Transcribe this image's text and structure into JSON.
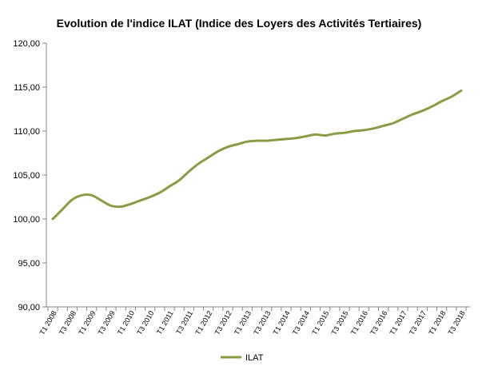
{
  "chart_data": {
    "type": "line",
    "title": "Evolution de l'indice ILAT (Indice des Loyers des Activités Tertiaires)",
    "xlabel": "",
    "ylabel": "",
    "ylim": [
      90,
      120
    ],
    "yticks": [
      "90,00",
      "95,00",
      "100,00",
      "105,00",
      "110,00",
      "115,00",
      "120,00"
    ],
    "ytick_values": [
      90,
      95,
      100,
      105,
      110,
      115,
      120
    ],
    "categories": [
      "T1 2008",
      "T2 2008",
      "T3 2008",
      "T4 2008",
      "T1 2009",
      "T2 2009",
      "T3 2009",
      "T4 2009",
      "T1 2010",
      "T2 2010",
      "T3 2010",
      "T4 2010",
      "T1 2011",
      "T2 2011",
      "T3 2011",
      "T4 2011",
      "T1 2012",
      "T2 2012",
      "T3 2012",
      "T4 2012",
      "T1 2013",
      "T2 2013",
      "T3 2013",
      "T4 2013",
      "T1 2014",
      "T2 2014",
      "T3 2014",
      "T4 2014",
      "T1 2015",
      "T2 2015",
      "T3 2015",
      "T4 2015",
      "T1 2016",
      "T2 2016",
      "T3 2016",
      "T4 2016",
      "T1 2017",
      "T2 2017",
      "T3 2017",
      "T4 2017",
      "T1 2018",
      "T2 2018",
      "T3 2018"
    ],
    "tick_labels": [
      "T1 2008",
      "T3 2008",
      "T1 2009",
      "T3 2009",
      "T1 2010",
      "T3 2010",
      "T1 2011",
      "T3 2011",
      "T1 2012",
      "T3 2012",
      "T1 2013",
      "T3 2013",
      "T1 2014",
      "T3 2014",
      "T1 2015",
      "T3 2015",
      "T1 2016",
      "T3 2016",
      "T1 2017",
      "T3 2017",
      "T1 2018",
      "T3 2018"
    ],
    "series": [
      {
        "name": "ILAT",
        "color": "#8a9b45",
        "values": [
          100.0,
          101.1,
          102.2,
          102.7,
          102.7,
          102.1,
          101.5,
          101.4,
          101.7,
          102.1,
          102.5,
          103.0,
          103.7,
          104.4,
          105.4,
          106.3,
          107.0,
          107.7,
          108.2,
          108.5,
          108.8,
          108.9,
          108.9,
          109.0,
          109.1,
          109.2,
          109.4,
          109.6,
          109.5,
          109.7,
          109.8,
          110.0,
          110.1,
          110.3,
          110.6,
          110.9,
          111.4,
          111.9,
          112.3,
          112.8,
          113.4,
          113.9,
          114.6
        ]
      }
    ],
    "grid": false,
    "legend": "bottom"
  }
}
